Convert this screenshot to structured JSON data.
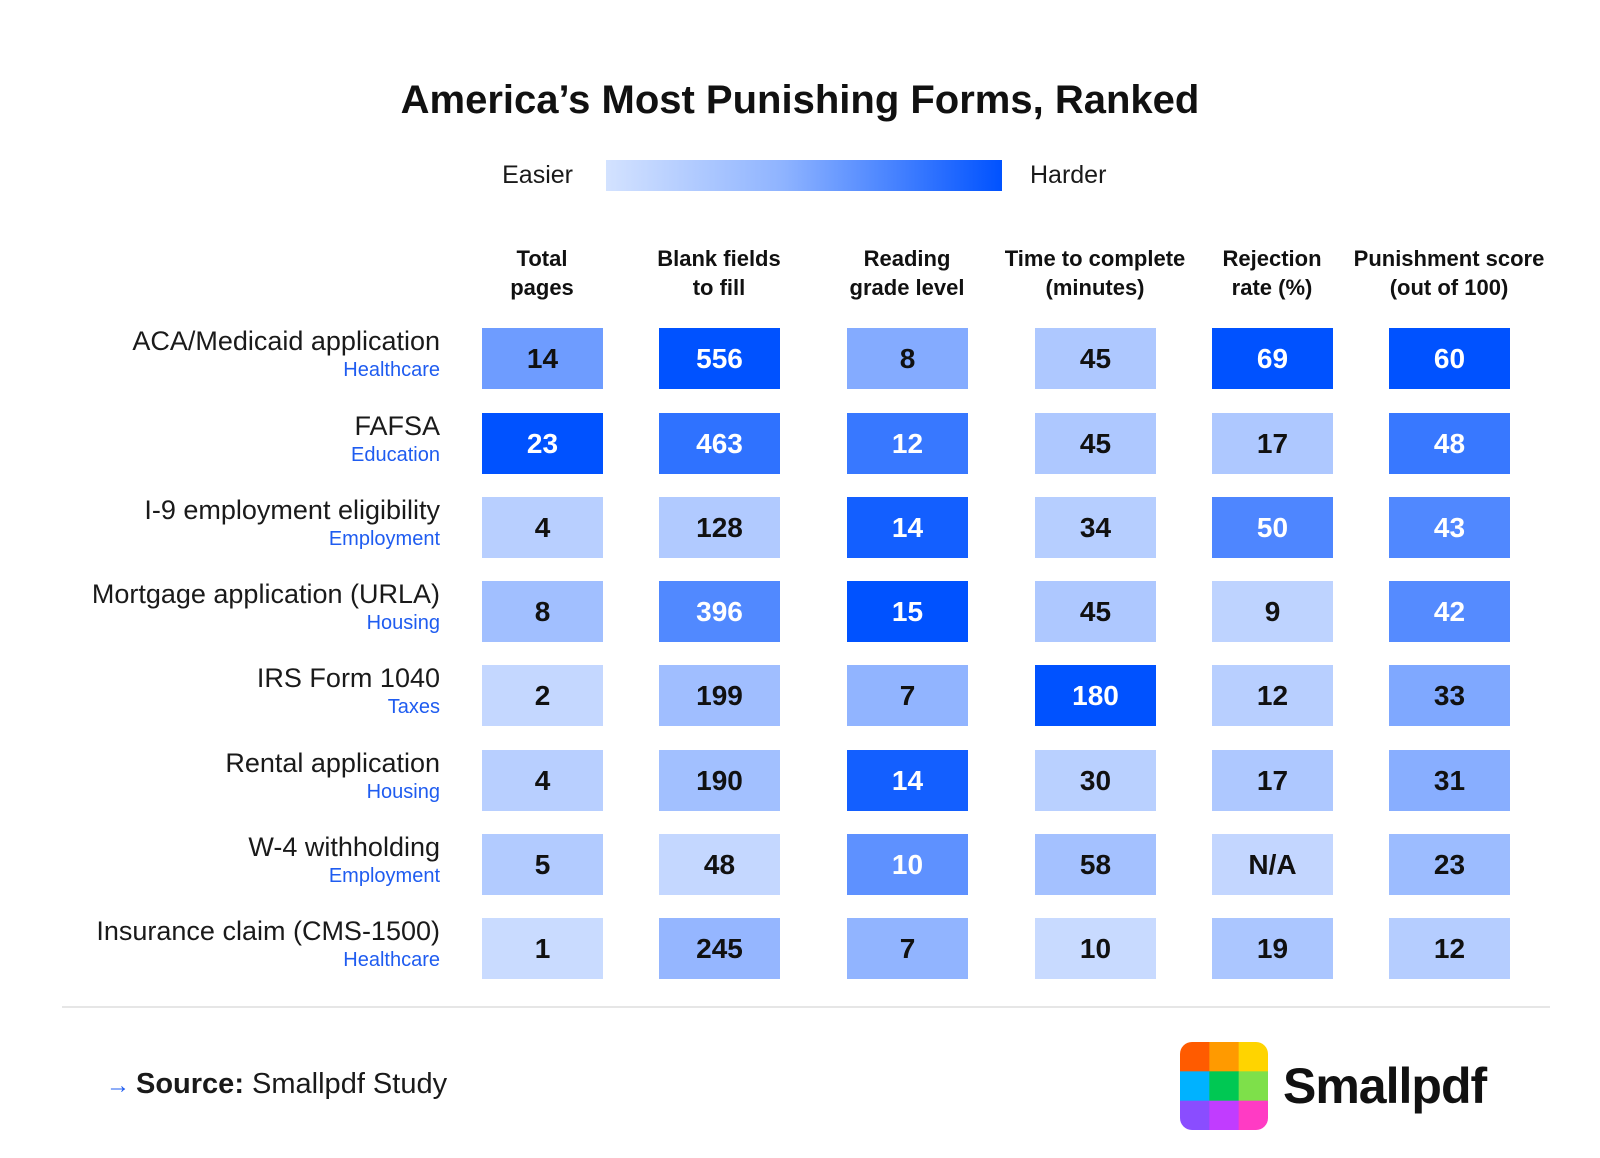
{
  "chart_data": {
    "type": "table",
    "title": "America’s Most Punishing Forms, Ranked",
    "legend": {
      "min_label": "Easier",
      "max_label": "Harder"
    },
    "columns": [
      {
        "label": "Total\npages",
        "max": 23
      },
      {
        "label": "Blank fields\nto fill",
        "max": 556
      },
      {
        "label": "Reading\ngrade level",
        "max": 15
      },
      {
        "label": "Time to complete\n(minutes)",
        "max": 180
      },
      {
        "label": "Rejection\nrate (%)",
        "max": 69
      },
      {
        "label": "Punishment score\n(out of 100)",
        "max": 60
      }
    ],
    "rows": [
      {
        "name": "ACA/Medicaid application",
        "category": "Healthcare",
        "values": [
          "14",
          "556",
          "8",
          "45",
          "69",
          "60"
        ]
      },
      {
        "name": "FAFSA",
        "category": "Education",
        "values": [
          "23",
          "463",
          "12",
          "45",
          "17",
          "48"
        ]
      },
      {
        "name": "I-9 employment eligibility",
        "category": "Employment",
        "values": [
          "4",
          "128",
          "14",
          "34",
          "50",
          "43"
        ]
      },
      {
        "name": "Mortgage application (URLA)",
        "category": "Housing",
        "values": [
          "8",
          "396",
          "15",
          "45",
          "9",
          "42"
        ]
      },
      {
        "name": "IRS Form 1040",
        "category": "Taxes",
        "values": [
          "2",
          "199",
          "7",
          "180",
          "12",
          "33"
        ]
      },
      {
        "name": "Rental application",
        "category": "Housing",
        "values": [
          "4",
          "190",
          "14",
          "30",
          "17",
          "31"
        ]
      },
      {
        "name": "W-4 withholding",
        "category": "Employment",
        "values": [
          "5",
          "48",
          "10",
          "58",
          "N/A",
          "23"
        ]
      },
      {
        "name": "Insurance claim (CMS-1500)",
        "category": "Healthcare",
        "values": [
          "1",
          "245",
          "7",
          "10",
          "19",
          "12"
        ]
      }
    ],
    "colors": {
      "low": "#cfdfff",
      "mid": "#8db1ff",
      "high": "#0052ff",
      "na": "#c3d6ff"
    }
  },
  "footer": {
    "source_label": "Source:",
    "source_text": "Smallpdf Study",
    "brand": "Smallpdf",
    "logo_colors": [
      "#ff5b00",
      "#ff9a00",
      "#ffd400",
      "#00b2ff",
      "#00c853",
      "#7ee04a",
      "#8a4dff",
      "#c13cff",
      "#ff3bc4"
    ]
  }
}
